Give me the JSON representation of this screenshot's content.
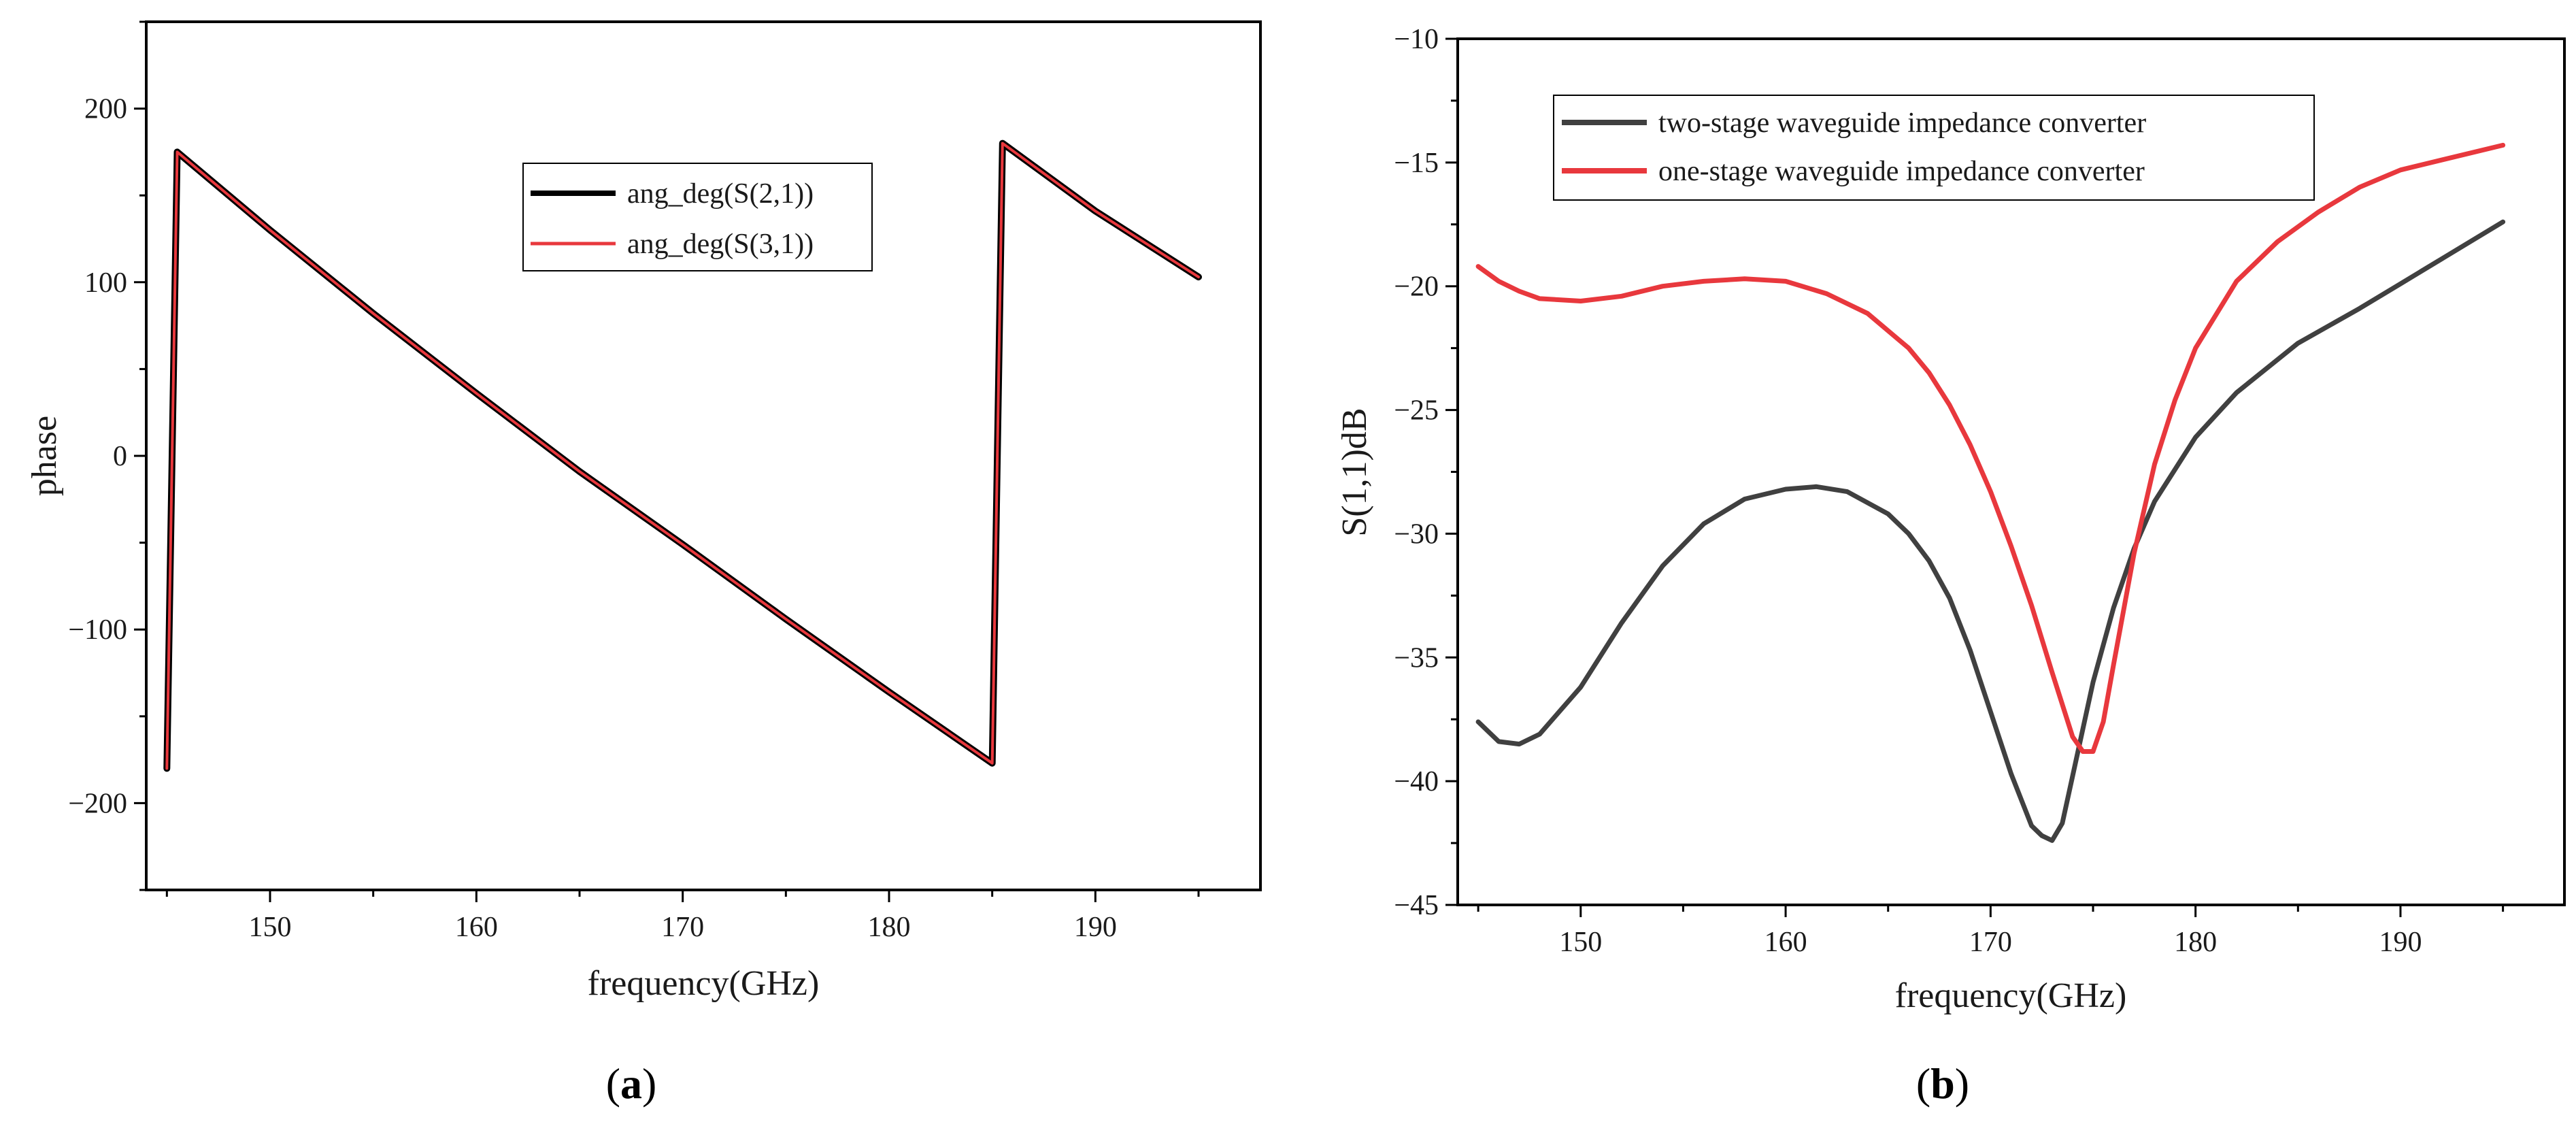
{
  "chart_data": [
    {
      "type": "line",
      "panel_label": "a",
      "xlabel": "frequency(GHz)",
      "ylabel": "phase",
      "xlim": [
        144,
        198
      ],
      "ylim": [
        -250,
        250
      ],
      "xticks": [
        150,
        160,
        170,
        180,
        190
      ],
      "yticks": [
        -200,
        -100,
        0,
        100,
        200
      ],
      "tick_labels_x": [
        "150",
        "160",
        "170",
        "180",
        "190"
      ],
      "tick_labels_y": [
        "−200",
        "−100",
        "0",
        "100",
        "200"
      ],
      "grid": false,
      "legend_position": "top-center",
      "series": [
        {
          "name": "ang_deg(S(2,1))",
          "color": "#000000",
          "x": [
            145.0,
            145.5,
            150,
            155,
            160,
            165,
            170,
            175,
            180,
            185.0,
            185.5,
            190,
            195
          ],
          "y": [
            -180,
            175,
            130,
            82,
            36,
            -9,
            -51,
            -94,
            -136,
            -177,
            180,
            141,
            103
          ]
        },
        {
          "name": "ang_deg(S(3,1))",
          "color": "#e8383d",
          "x": [
            145.0,
            145.5,
            150,
            155,
            160,
            165,
            170,
            175,
            180,
            185.0,
            185.5,
            190,
            195
          ],
          "y": [
            -180,
            175,
            130,
            82,
            36,
            -9,
            -51,
            -94,
            -136,
            -177,
            180,
            141,
            103
          ]
        }
      ]
    },
    {
      "type": "line",
      "panel_label": "b",
      "xlabel": "frequency(GHz)",
      "ylabel": "S(1,1)dB",
      "xlim": [
        144,
        198
      ],
      "ylim": [
        -45,
        -10
      ],
      "xticks": [
        150,
        160,
        170,
        180,
        190
      ],
      "yticks": [
        -45,
        -40,
        -35,
        -30,
        -25,
        -20,
        -15,
        -10
      ],
      "tick_labels_x": [
        "150",
        "160",
        "170",
        "180",
        "190"
      ],
      "tick_labels_y": [
        "−45",
        "−40",
        "−35",
        "−30",
        "−25",
        "−20",
        "−15",
        "−10"
      ],
      "grid": false,
      "legend_position": "top-left",
      "series": [
        {
          "name": "two-stage waveguide impedance converter",
          "color": "#404040",
          "x": [
            145,
            146,
            147,
            148,
            150,
            152,
            154,
            156,
            158,
            160,
            161.5,
            163,
            165,
            166,
            167,
            168,
            169,
            170,
            171,
            172,
            172.5,
            173,
            173.5,
            174,
            175,
            176,
            177,
            178,
            180,
            182,
            185,
            188,
            190,
            192,
            195
          ],
          "y": [
            -37.6,
            -38.4,
            -38.5,
            -38.1,
            -36.2,
            -33.6,
            -31.3,
            -29.6,
            -28.6,
            -28.2,
            -28.1,
            -28.3,
            -29.2,
            -30.0,
            -31.1,
            -32.6,
            -34.7,
            -37.2,
            -39.7,
            -41.8,
            -42.2,
            -42.4,
            -41.7,
            -39.8,
            -36.0,
            -33.0,
            -30.6,
            -28.7,
            -26.1,
            -24.3,
            -22.3,
            -20.9,
            -19.9,
            -18.9,
            -17.4
          ]
        },
        {
          "name": "one-stage waveguide impedance converter",
          "color": "#e8383d",
          "x": [
            145,
            146,
            147,
            148,
            150,
            152,
            154,
            156,
            158,
            160,
            162,
            164,
            166,
            167,
            168,
            169,
            170,
            171,
            172,
            173,
            174,
            174.5,
            175,
            175.5,
            176,
            177,
            178,
            179,
            180,
            182,
            184,
            186,
            188,
            190,
            192,
            195
          ],
          "y": [
            -19.2,
            -19.8,
            -20.2,
            -20.5,
            -20.6,
            -20.4,
            -20.0,
            -19.8,
            -19.7,
            -19.8,
            -20.3,
            -21.1,
            -22.5,
            -23.5,
            -24.8,
            -26.4,
            -28.3,
            -30.5,
            -32.9,
            -35.6,
            -38.2,
            -38.8,
            -38.8,
            -37.6,
            -35.3,
            -30.8,
            -27.2,
            -24.6,
            -22.5,
            -19.8,
            -18.2,
            -17.0,
            -16.0,
            -15.3,
            -14.9,
            -14.3
          ]
        }
      ]
    }
  ]
}
